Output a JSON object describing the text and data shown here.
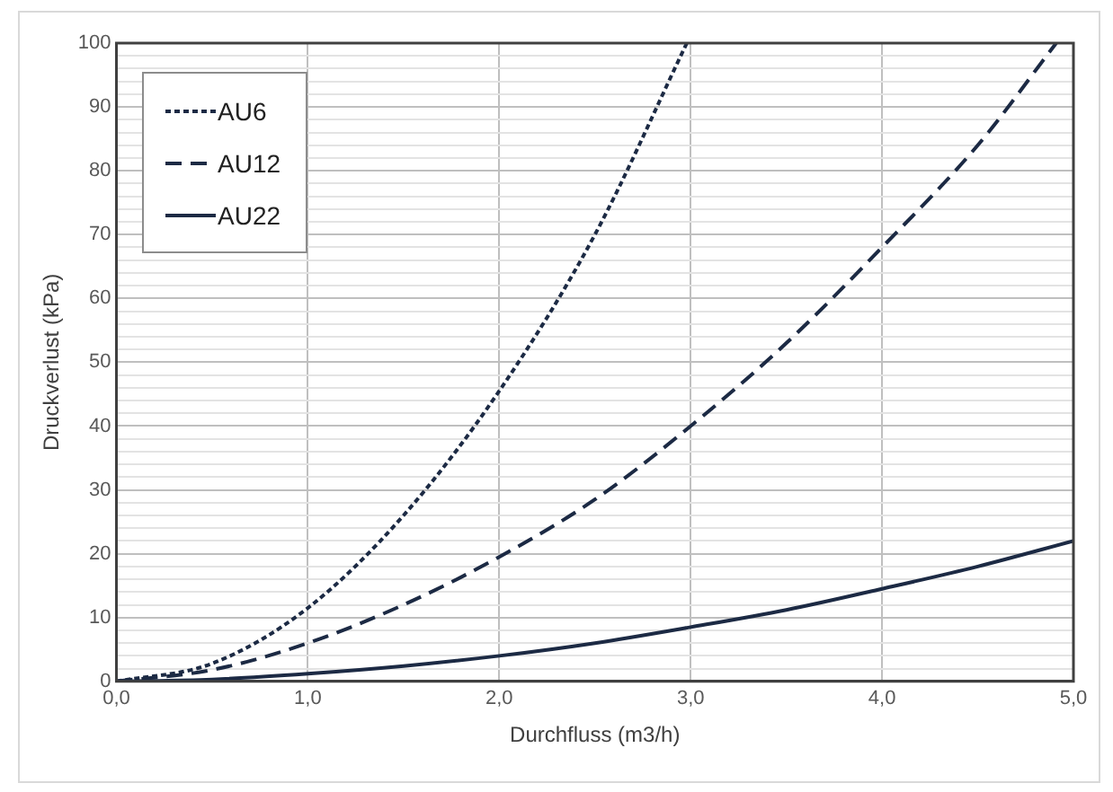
{
  "chart_data": {
    "type": "line",
    "xlabel": "Durchfluss (m3/h)",
    "ylabel": "Druckverlust (kPa)",
    "xlim": [
      0,
      5
    ],
    "xticks": [
      {
        "value": 0,
        "label": "0,0"
      },
      {
        "value": 1,
        "label": "1,0"
      },
      {
        "value": 2,
        "label": "2,0"
      },
      {
        "value": 3,
        "label": "3,0"
      },
      {
        "value": 4,
        "label": "4,0"
      },
      {
        "value": 5,
        "label": "5,0"
      }
    ],
    "ylim": [
      0,
      100
    ],
    "yticks": [
      0,
      {
        "value": 2,
        "label": null
      },
      {
        "value": 4,
        "label": null
      },
      {
        "value": 6,
        "label": null
      },
      {
        "value": 8,
        "label": null
      },
      10,
      {
        "value": 12,
        "label": null
      },
      {
        "value": 14,
        "label": null
      },
      {
        "value": 16,
        "label": null
      },
      {
        "value": 18,
        "label": null
      },
      20,
      {
        "value": 22,
        "label": null
      },
      {
        "value": 24,
        "label": null
      },
      {
        "value": 26,
        "label": null
      },
      {
        "value": 28,
        "label": null
      },
      30,
      {
        "value": 32,
        "label": null
      },
      {
        "value": 34,
        "label": null
      },
      {
        "value": 36,
        "label": null
      },
      {
        "value": 38,
        "label": null
      },
      40,
      {
        "value": 42,
        "label": null
      },
      {
        "value": 44,
        "label": null
      },
      {
        "value": 46,
        "label": null
      },
      {
        "value": 48,
        "label": null
      },
      50,
      {
        "value": 52,
        "label": null
      },
      {
        "value": 54,
        "label": null
      },
      {
        "value": 56,
        "label": null
      },
      {
        "value": 58,
        "label": null
      },
      60,
      {
        "value": 62,
        "label": null
      },
      {
        "value": 64,
        "label": null
      },
      {
        "value": 66,
        "label": null
      },
      {
        "value": 68,
        "label": null
      },
      70,
      {
        "value": 72,
        "label": null
      },
      {
        "value": 74,
        "label": null
      },
      {
        "value": 76,
        "label": null
      },
      {
        "value": 78,
        "label": null
      },
      80,
      {
        "value": 82,
        "label": null
      },
      {
        "value": 84,
        "label": null
      },
      {
        "value": 86,
        "label": null
      },
      {
        "value": 88,
        "label": null
      },
      90,
      {
        "value": 92,
        "label": null
      },
      {
        "value": 94,
        "label": null
      },
      {
        "value": 96,
        "label": null
      },
      {
        "value": 98,
        "label": null
      },
      100
    ],
    "grid": true,
    "legend": "top left",
    "marker": "none",
    "series": [
      {
        "name": "AU6",
        "color": "#1c2a44",
        "line_style": "dotted",
        "x": [
          0,
          0.5,
          1,
          1.5,
          2,
          2.5,
          2.98
        ],
        "values": [
          0,
          2.8,
          11.5,
          26,
          45.5,
          70,
          100
        ]
      },
      {
        "name": "AU12",
        "color": "#1c2a44",
        "line_style": "dashed",
        "x": [
          0,
          0.5,
          1,
          1.5,
          2,
          2.5,
          3,
          3.5,
          4,
          4.5,
          4.91
        ],
        "values": [
          0,
          1.8,
          6,
          12,
          19.5,
          28.5,
          40,
          53,
          68,
          84,
          100
        ]
      },
      {
        "name": "AU22",
        "color": "#1c2a44",
        "line_style": "solid",
        "x": [
          0,
          0.5,
          1,
          1.5,
          2,
          2.5,
          3,
          3.5,
          4,
          4.5,
          5
        ],
        "values": [
          0,
          0.3,
          1.2,
          2.4,
          4,
          6,
          8.5,
          11.2,
          14.5,
          18,
          22
        ]
      }
    ]
  }
}
